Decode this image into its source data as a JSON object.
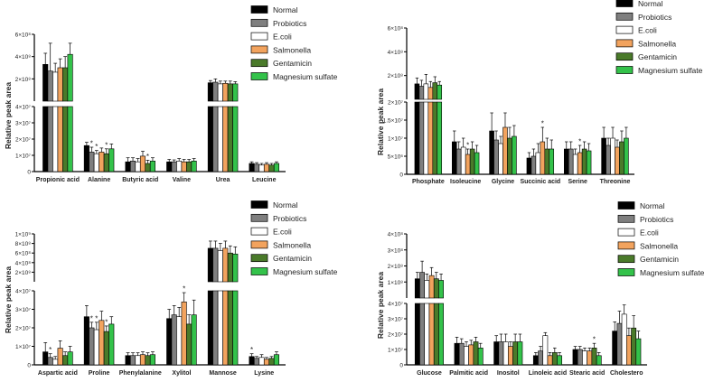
{
  "legend_entries": [
    {
      "name": "Normal",
      "color": "#000000"
    },
    {
      "name": "Probiotics",
      "color": "#7f7f7f"
    },
    {
      "name": "E.coli",
      "color": "#ffffff"
    },
    {
      "name": "Salmonella",
      "color": "#f2a35e"
    },
    {
      "name": "Gentamicin",
      "color": "#4a7a2a"
    },
    {
      "name": "Magnesium sulfate",
      "color": "#33c24a"
    }
  ],
  "chart_data": [
    {
      "type": "bar",
      "ylabel": "Relative peak area",
      "categories": [
        "Propionic acid",
        "Alanine",
        "Butyric acid",
        "Valine",
        "Urea",
        "Leucine"
      ],
      "lower_ticks": [
        "0",
        "1×10⁷",
        "2×10⁷",
        "3×10⁷",
        "4×10⁷"
      ],
      "upper_ticks": [
        "2×10⁸",
        "4×10⁸",
        "6×10⁸"
      ],
      "lower_ylim": [
        0,
        40000000
      ],
      "upper_ylim": [
        0,
        600000000
      ],
      "series": [
        {
          "name": "Normal",
          "values": [
            330000000.0,
            16000000.0,
            6000000.0,
            6000000.0,
            165000000.0,
            5000000.0
          ],
          "errors": [
            100000000.0,
            2000000.0,
            2500000.0,
            1500000.0,
            20000000.0,
            1000000.0
          ]
        },
        {
          "name": "Probiotics",
          "values": [
            270000000.0,
            12000000.0,
            6500000.0,
            6000000.0,
            170000000.0,
            4500000.0
          ],
          "errors": [
            250000000.0,
            3000000.0,
            2000000.0,
            1200000.0,
            30000000.0,
            1000000.0
          ]
        },
        {
          "name": "E.coli",
          "values": [
            260000000.0,
            11000000.0,
            6000000.0,
            6500000.0,
            155000000.0,
            4000000.0
          ],
          "errors": [
            80000000.0,
            2000000.0,
            2000000.0,
            1500000.0,
            25000000.0,
            1000000.0
          ]
        },
        {
          "name": "Salmonella",
          "values": [
            300000000.0,
            12000000.0,
            9500000.0,
            6000000.0,
            160000000.0,
            4500000.0
          ],
          "errors": [
            80000000.0,
            2500000.0,
            3000000.0,
            1500000.0,
            20000000.0,
            1000000.0
          ]
        },
        {
          "name": "Gentamicin",
          "values": [
            300000000.0,
            11000000.0,
            5000000.0,
            6000000.0,
            155000000.0,
            4000000.0
          ],
          "errors": [
            100000000.0,
            3000000.0,
            2000000.0,
            1500000.0,
            25000000.0,
            1000000.0
          ]
        },
        {
          "name": "Magnesium sulfate",
          "values": [
            420000000.0,
            14000000.0,
            6500000.0,
            6500000.0,
            155000000.0,
            5000000.0
          ],
          "errors": [
            100000000.0,
            3000000.0,
            2000000.0,
            1500000.0,
            20000000.0,
            1000000.0
          ]
        }
      ],
      "stars": [
        {
          "category": 1,
          "series": 1,
          "label": "*"
        },
        {
          "category": 1,
          "series": 2,
          "label": "*"
        },
        {
          "category": 1,
          "series": 4,
          "label": "*"
        },
        {
          "category": 2,
          "series": 4,
          "label": "*"
        }
      ]
    },
    {
      "type": "bar",
      "ylabel": "Relative peak area",
      "categories": [
        "Phosphate",
        "Isoleucine",
        "Glycine",
        "Succinic acid",
        "Serine",
        "Threonine"
      ],
      "lower_ticks": [
        "0",
        "5×10⁶",
        "1×10⁷",
        "1.5×10⁷",
        "2×10⁷"
      ],
      "upper_ticks": [
        "2×10⁸",
        "4×10⁸",
        "6×10⁸"
      ],
      "lower_ylim": [
        0,
        20000000
      ],
      "upper_ylim": [
        0,
        600000000
      ],
      "series": [
        {
          "name": "Normal",
          "values": [
            130000000.0,
            9000000.0,
            12000000.0,
            4500000.0,
            7000000.0,
            10000000.0
          ],
          "errors": [
            50000000.0,
            3000000.0,
            5000000.0,
            1500000.0,
            2000000.0,
            3000000.0
          ]
        },
        {
          "name": "Probiotics",
          "values": [
            110000000.0,
            7000000.0,
            9500000.0,
            5000000.0,
            7000000.0,
            8000000.0
          ],
          "errors": [
            50000000.0,
            2000000.0,
            2500000.0,
            2000000.0,
            2000000.0,
            2000000.0
          ]
        },
        {
          "name": "E.coli",
          "values": [
            130000000.0,
            7500000.0,
            8500000.0,
            6000000.0,
            5500000.0,
            10000000.0
          ],
          "errors": [
            80000000.0,
            2500000.0,
            2000000.0,
            2500000.0,
            1500000.0,
            3000000.0
          ]
        },
        {
          "name": "Salmonella",
          "values": [
            100000000.0,
            5500000.0,
            13000000.0,
            9000000.0,
            6000000.0,
            7500000.0
          ],
          "errors": [
            50000000.0,
            1500000.0,
            4000000.0,
            4000000.0,
            2000000.0,
            2000000.0
          ]
        },
        {
          "name": "Gentamicin",
          "values": [
            140000000.0,
            7000000.0,
            10000000.0,
            7000000.0,
            7000000.0,
            9000000.0
          ],
          "errors": [
            50000000.0,
            2000000.0,
            3000000.0,
            3000000.0,
            2000000.0,
            3000000.0
          ]
        },
        {
          "name": "Magnesium sulfate",
          "values": [
            120000000.0,
            6000000.0,
            10500000.0,
            7000000.0,
            6500000.0,
            10000000.0
          ],
          "errors": [
            30000000.0,
            2000000.0,
            3000000.0,
            2500000.0,
            2000000.0,
            3000000.0
          ]
        }
      ],
      "stars": [
        {
          "category": 1,
          "series": 3,
          "label": "*"
        },
        {
          "category": 3,
          "series": 3,
          "label": "*"
        },
        {
          "category": 4,
          "series": 3,
          "label": "*"
        }
      ]
    },
    {
      "type": "bar",
      "ylabel": "Relative peak area",
      "categories": [
        "Aspartic acid",
        "Proline",
        "Phenylalanine",
        "Xylitol",
        "Mannose",
        "Lysine"
      ],
      "lower_ticks": [
        "0",
        "1×10⁷",
        "2×10⁷",
        "3×10⁷",
        "4×10⁷"
      ],
      "upper_ticks": [
        "2×10⁸",
        "4×10⁸",
        "6×10⁸",
        "8×10⁸",
        "1×10⁹"
      ],
      "lower_ylim": [
        0,
        40000000
      ],
      "upper_ylim": [
        0,
        1000000000
      ],
      "series": [
        {
          "name": "Normal",
          "values": [
            7000000.0,
            26000000.0,
            5000000.0,
            25000000.0,
            700000000.0,
            4500000.0
          ],
          "errors": [
            5000000.0,
            6000000.0,
            1500000.0,
            5000000.0,
            150000000.0,
            1500000.0
          ]
        },
        {
          "name": "Probiotics",
          "values": [
            4000000.0,
            20000000.0,
            5000000.0,
            27000000.0,
            700000000.0,
            3500000.0
          ],
          "errors": [
            2000000.0,
            3000000.0,
            1500000.0,
            5000000.0,
            150000000.0,
            1000000.0
          ]
        },
        {
          "name": "E.coli",
          "values": [
            3000000.0,
            19000000.0,
            5000000.0,
            26000000.0,
            650000000.0,
            4000000.0
          ],
          "errors": [
            1500000.0,
            4000000.0,
            1500000.0,
            5000000.0,
            150000000.0,
            1500000.0
          ]
        },
        {
          "name": "Salmonella",
          "values": [
            9000000.0,
            24000000.0,
            5500000.0,
            34000000.0,
            700000000.0,
            3000000.0
          ],
          "errors": [
            4000000.0,
            5000000.0,
            1500000.0,
            5000000.0,
            150000000.0,
            1000000.0
          ]
        },
        {
          "name": "Gentamicin",
          "values": [
            5000000.0,
            18000000.0,
            5000000.0,
            22000000.0,
            600000000.0,
            3500000.0
          ],
          "errors": [
            2000000.0,
            3000000.0,
            1500000.0,
            5000000.0,
            150000000.0,
            1000000.0
          ]
        },
        {
          "name": "Magnesium sulfate",
          "values": [
            7000000.0,
            22000000.0,
            5500000.0,
            27000000.0,
            580000000.0,
            5500000.0
          ],
          "errors": [
            3000000.0,
            4000000.0,
            1500000.0,
            8000000.0,
            150000000.0,
            1500000.0
          ]
        }
      ],
      "stars": [
        {
          "category": 0,
          "series": 1,
          "label": "*"
        },
        {
          "category": 1,
          "series": 1,
          "label": "*"
        },
        {
          "category": 1,
          "series": 2,
          "label": "*"
        },
        {
          "category": 1,
          "series": 4,
          "label": "*"
        },
        {
          "category": 3,
          "series": 3,
          "label": "*"
        },
        {
          "category": 5,
          "series": 0,
          "label": "*"
        }
      ]
    },
    {
      "type": "bar",
      "ylabel": "Relative peak area",
      "categories": [
        "Glucose",
        "Palmitic acid",
        "Inositol",
        "Linoleic acid",
        "Stearic acid",
        "Cholestero"
      ],
      "lower_ticks": [
        "0",
        "1×10⁷",
        "2×10⁷",
        "3×10⁷",
        "4×10⁷"
      ],
      "upper_ticks": [
        "1×10⁸",
        "2×10⁸",
        "3×10⁸",
        "4×10⁸"
      ],
      "lower_ylim": [
        0,
        40000000
      ],
      "upper_ylim": [
        0,
        400000000
      ],
      "series": [
        {
          "name": "Normal",
          "values": [
            120000000.0,
            14000000.0,
            15000000.0,
            6000000.0,
            10000000.0,
            22000000.0
          ],
          "errors": [
            40000000.0,
            4000000.0,
            4000000.0,
            2000000.0,
            2000000.0,
            6000000.0
          ]
        },
        {
          "name": "Probiotics",
          "values": [
            160000000.0,
            14000000.0,
            15000000.0,
            9000000.0,
            10000000.0,
            27000000.0
          ],
          "errors": [
            70000000.0,
            3000000.0,
            5000000.0,
            3000000.0,
            2000000.0,
            8000000.0
          ]
        },
        {
          "name": "E.coli",
          "values": [
            110000000.0,
            12000000.0,
            15000000.0,
            19000000.0,
            9000000.0,
            33000000.0
          ],
          "errors": [
            40000000.0,
            3000000.0,
            5000000.0,
            2000000.0,
            2000000.0,
            6000000.0
          ]
        },
        {
          "name": "Salmonella",
          "values": [
            140000000.0,
            13000000.0,
            12000000.0,
            6000000.0,
            9000000.0,
            19000000.0
          ],
          "errors": [
            50000000.0,
            3000000.0,
            3000000.0,
            2000000.0,
            2000000.0,
            5000000.0
          ]
        },
        {
          "name": "Gentamicin",
          "values": [
            120000000.0,
            15000000.0,
            15000000.0,
            8000000.0,
            11000000.0,
            24000000.0
          ],
          "errors": [
            40000000.0,
            3000000.0,
            5000000.0,
            3000000.0,
            3000000.0,
            8000000.0
          ]
        },
        {
          "name": "Magnesium sulfate",
          "values": [
            110000000.0,
            11000000.0,
            15000000.0,
            6000000.0,
            6000000.0,
            17000000.0
          ],
          "errors": [
            40000000.0,
            3000000.0,
            5000000.0,
            2000000.0,
            2000000.0,
            5000000.0
          ]
        }
      ],
      "stars": [
        {
          "category": 4,
          "series": 4,
          "label": "*"
        }
      ]
    }
  ]
}
